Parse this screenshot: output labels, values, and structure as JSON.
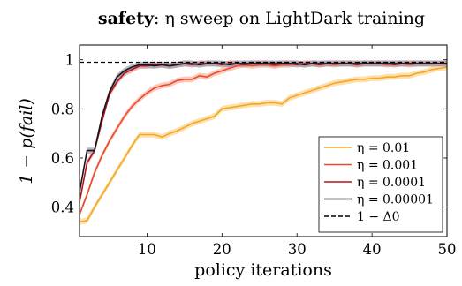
{
  "chart_data": {
    "type": "line",
    "title_bold": "safety",
    "title_rest": ": η sweep on LightDark training",
    "xlabel": "policy iterations",
    "ylabel": "1 − p(fail)",
    "xlim": [
      1,
      50
    ],
    "ylim": [
      0.28,
      1.06
    ],
    "xticks": [
      10,
      20,
      30,
      40,
      50
    ],
    "yticks": [
      0.4,
      0.6,
      0.8,
      1
    ],
    "ytick_labels": [
      "0.4",
      "0.6",
      "0.8",
      "1"
    ],
    "grid": false,
    "legend_position": "bottom-right",
    "x": [
      1,
      2,
      3,
      4,
      5,
      6,
      7,
      8,
      9,
      10,
      11,
      12,
      13,
      14,
      15,
      16,
      17,
      18,
      19,
      20,
      21,
      22,
      23,
      24,
      25,
      26,
      27,
      28,
      29,
      30,
      31,
      32,
      33,
      34,
      35,
      36,
      37,
      38,
      39,
      40,
      41,
      42,
      43,
      44,
      45,
      46,
      47,
      48,
      49,
      50
    ],
    "series": [
      {
        "name": "η = 0.01",
        "color": "#f5a623",
        "band_color": "#fbd38d",
        "values": [
          0.34,
          0.345,
          0.4,
          0.45,
          0.5,
          0.55,
          0.6,
          0.65,
          0.695,
          0.695,
          0.695,
          0.685,
          0.7,
          0.71,
          0.725,
          0.74,
          0.75,
          0.76,
          0.77,
          0.8,
          0.805,
          0.81,
          0.815,
          0.82,
          0.82,
          0.825,
          0.825,
          0.82,
          0.845,
          0.855,
          0.865,
          0.875,
          0.885,
          0.895,
          0.905,
          0.91,
          0.915,
          0.92,
          0.92,
          0.925,
          0.925,
          0.93,
          0.93,
          0.935,
          0.935,
          0.945,
          0.95,
          0.96,
          0.965,
          0.97
        ]
      },
      {
        "name": "η = 0.001",
        "color": "#ea4a2a",
        "band_color": "#f8b3a0",
        "values": [
          0.37,
          0.45,
          0.54,
          0.61,
          0.67,
          0.72,
          0.77,
          0.81,
          0.84,
          0.865,
          0.885,
          0.895,
          0.9,
          0.915,
          0.92,
          0.92,
          0.935,
          0.93,
          0.945,
          0.955,
          0.965,
          0.975,
          0.98,
          0.975,
          0.98,
          0.98,
          0.975,
          0.98,
          0.98,
          0.985,
          0.98,
          0.985,
          0.98,
          0.985,
          0.98,
          0.985,
          0.985,
          0.98,
          0.985,
          0.985,
          0.985,
          0.98,
          0.985,
          0.985,
          0.98,
          0.985,
          0.985,
          0.985,
          0.985,
          0.985
        ]
      },
      {
        "name": "η = 0.0001",
        "color": "#b0141a",
        "band_color": "#e49a9a",
        "values": [
          0.42,
          0.58,
          0.63,
          0.75,
          0.86,
          0.91,
          0.945,
          0.96,
          0.975,
          0.975,
          0.98,
          0.98,
          0.975,
          0.98,
          0.985,
          0.98,
          0.985,
          0.985,
          0.985,
          0.98,
          0.985,
          0.985,
          0.98,
          0.985,
          0.985,
          0.985,
          0.98,
          0.985,
          0.985,
          0.98,
          0.985,
          0.985,
          0.98,
          0.985,
          0.985,
          0.985,
          0.985,
          0.98,
          0.985,
          0.985,
          0.985,
          0.985,
          0.98,
          0.985,
          0.985,
          0.985,
          0.985,
          0.985,
          0.985,
          0.985
        ]
      },
      {
        "name": "η = 0.00001",
        "color": "#141420",
        "band_color": "#9a9aa8",
        "values": [
          0.46,
          0.63,
          0.63,
          0.77,
          0.87,
          0.93,
          0.955,
          0.97,
          0.98,
          0.98,
          0.975,
          0.98,
          0.975,
          0.98,
          0.985,
          0.985,
          0.98,
          0.985,
          0.985,
          0.985,
          0.98,
          0.985,
          0.985,
          0.985,
          0.985,
          0.985,
          0.985,
          0.985,
          0.985,
          0.985,
          0.98,
          0.985,
          0.985,
          0.985,
          0.985,
          0.985,
          0.985,
          0.985,
          0.985,
          0.985,
          0.985,
          0.985,
          0.985,
          0.985,
          0.985,
          0.985,
          0.985,
          0.985,
          0.985,
          0.985
        ]
      },
      {
        "name": "1 − Δ0",
        "color": "#000000",
        "dashed": true,
        "constant": 0.99
      }
    ]
  }
}
